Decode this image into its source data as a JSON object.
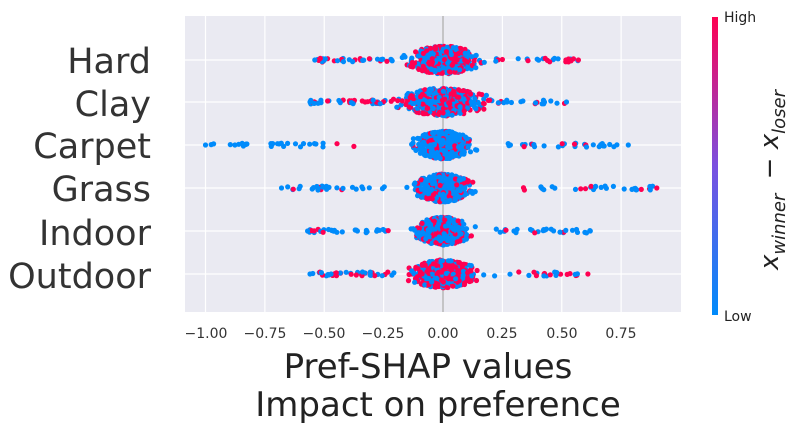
{
  "chart_data": {
    "type": "scatter",
    "subtype": "shap-beeswarm",
    "title": "",
    "xlabel": [
      "Pref-SHAP values",
      "Impact on preference"
    ],
    "ylabel": "",
    "xlim": [
      -1.1,
      1.0
    ],
    "x_ticks": [
      "−1.00",
      "−0.75",
      "−0.50",
      "−0.25",
      "0.00",
      "0.25",
      "0.50",
      "0.75"
    ],
    "x_tick_values": [
      -1.0,
      -0.75,
      -0.5,
      -0.25,
      0.0,
      0.25,
      0.5,
      0.75
    ],
    "features": [
      "Hard",
      "Clay",
      "Carpet",
      "Grass",
      "Indoor",
      "Outdoor"
    ],
    "feature_ranges": [
      {
        "feature": "Hard",
        "min": -0.54,
        "max": 0.57,
        "core_halfwidth": 0.13,
        "high_share": 0.5
      },
      {
        "feature": "Clay",
        "min": -0.56,
        "max": 0.52,
        "core_halfwidth": 0.15,
        "high_share": 0.45
      },
      {
        "feature": "Carpet",
        "min": -1.0,
        "max": 0.78,
        "core_halfwidth": 0.1,
        "high_share": 0.2
      },
      {
        "feature": "Grass",
        "min": -0.68,
        "max": 0.9,
        "core_halfwidth": 0.1,
        "high_share": 0.2
      },
      {
        "feature": "Indoor",
        "min": -0.57,
        "max": 0.62,
        "core_halfwidth": 0.1,
        "high_share": 0.25
      },
      {
        "feature": "Outdoor",
        "min": -0.56,
        "max": 0.61,
        "core_halfwidth": 0.12,
        "high_share": 0.6
      }
    ],
    "colorbar": {
      "label_high": "High",
      "label_low": "Low",
      "title": "x_winner − x_loser",
      "title_main": "x",
      "title_sub_1": "winner",
      "title_sub_2": "loser",
      "color_high": "#ff0052",
      "color_mid": "#7b50e0",
      "color_low": "#008bfb"
    },
    "background": "#eaeaf2",
    "grid": true
  }
}
